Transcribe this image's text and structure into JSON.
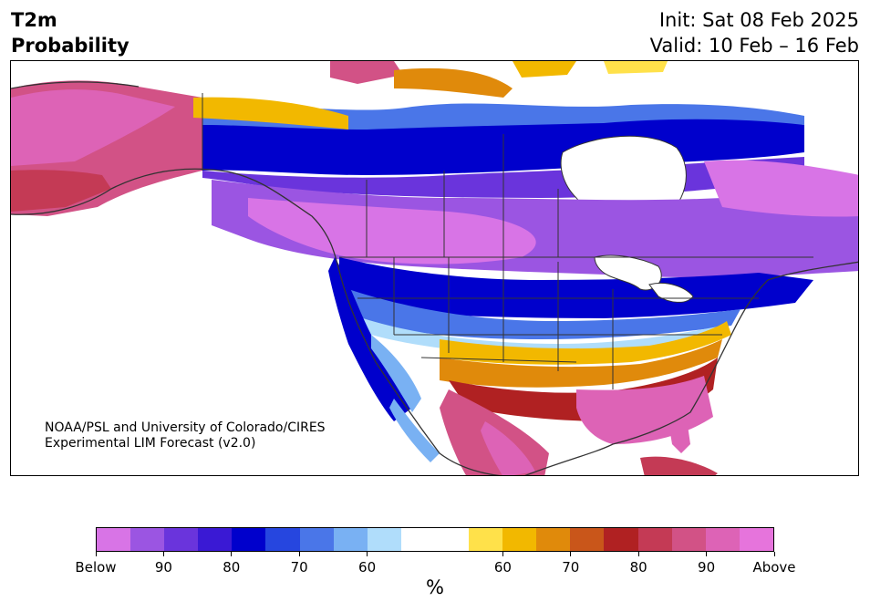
{
  "header": {
    "title_line1": "T2m",
    "title_line2": "Probability",
    "init_text": "Init: Sat 08 Feb 2025",
    "valid_text": "Valid: 10 Feb – 16 Feb"
  },
  "credit": {
    "line1": "NOAA/PSL and University of Colorado/CIRES",
    "line2": "Experimental LIM Forecast (v2.0)"
  },
  "colorbar": {
    "colors": [
      "#d874e6",
      "#9b55e2",
      "#6a34dc",
      "#3a19d4",
      "#0000cc",
      "#2646df",
      "#4a76e8",
      "#79b1f3",
      "#b0ddfb",
      "#ffffff",
      "#ffffff",
      "#ffe14a",
      "#f2b800",
      "#e08a0b",
      "#c9561a",
      "#b02122",
      "#c43a55",
      "#d25286",
      "#dd63b6",
      "#e674dc"
    ],
    "ticks": [
      {
        "label": "Below",
        "index": 0
      },
      {
        "label": "90",
        "index": 2
      },
      {
        "label": "80",
        "index": 4
      },
      {
        "label": "70",
        "index": 6
      },
      {
        "label": "60",
        "index": 8
      },
      {
        "label": "60",
        "index": 12
      },
      {
        "label": "70",
        "index": 14
      },
      {
        "label": "80",
        "index": 16
      },
      {
        "label": "90",
        "index": 18
      },
      {
        "label": "Above",
        "index": 20
      }
    ],
    "unit": "%"
  }
}
